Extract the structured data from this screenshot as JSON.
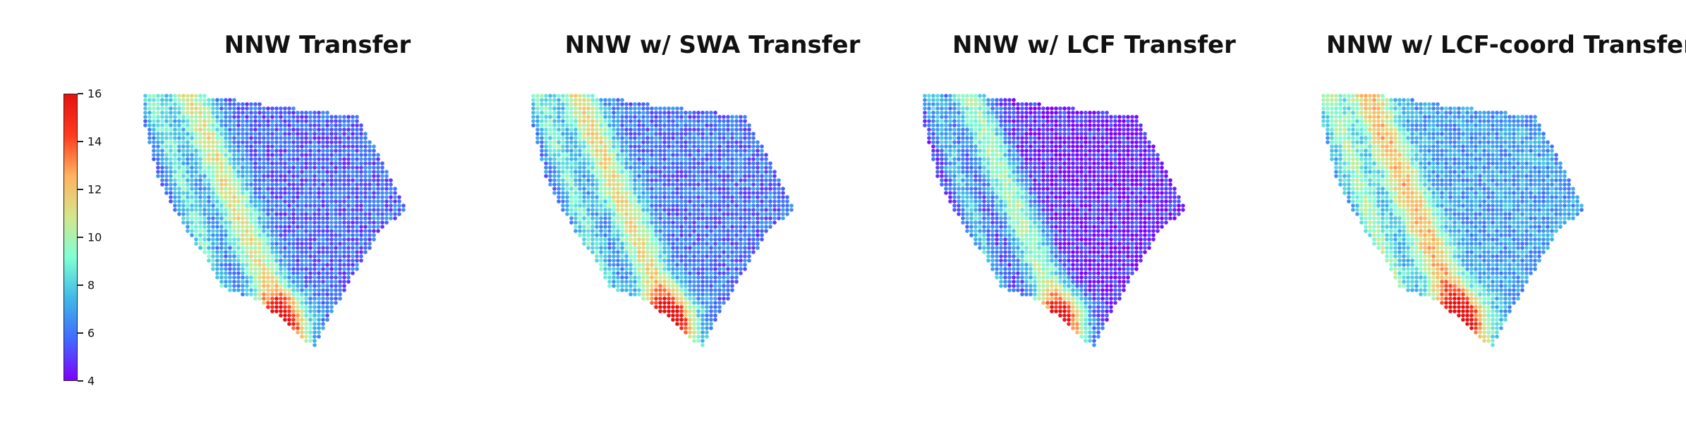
{
  "chart_data": [
    {
      "type": "heatmap",
      "title": "NNW Transfer",
      "colorscale": "rainbow",
      "clim": [
        4,
        16
      ]
    },
    {
      "type": "heatmap",
      "title": "NNW w/ SWA Transfer",
      "colorscale": "rainbow",
      "clim": [
        4,
        16
      ]
    },
    {
      "type": "heatmap",
      "title": "NNW w/ LCF Transfer",
      "colorscale": "rainbow",
      "clim": [
        4,
        16
      ]
    },
    {
      "type": "heatmap",
      "title": "NNW w/ LCF-coord Transfer",
      "colorscale": "rainbow",
      "clim": [
        4,
        16
      ]
    }
  ],
  "colorbar": {
    "ticks": [
      "4",
      "6",
      "8",
      "10",
      "12",
      "14",
      "16"
    ],
    "colors": [
      "#7f00ff",
      "#4169ff",
      "#3fb8e8",
      "#7fffd4",
      "#d4e68c",
      "#ffb360",
      "#ff3b1f",
      "#e61010"
    ]
  }
}
